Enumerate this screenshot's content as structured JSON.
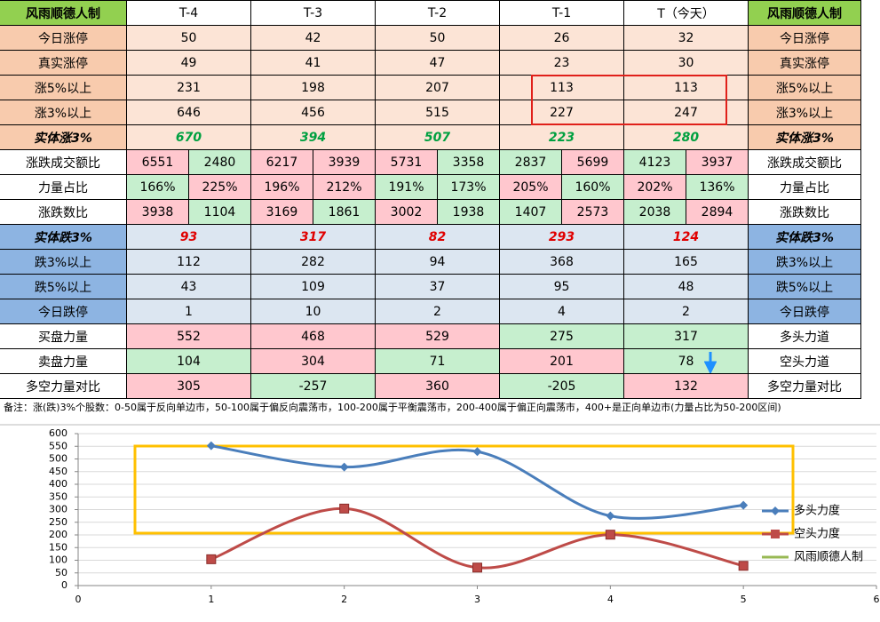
{
  "table": {
    "header": [
      "风雨顺德人制",
      "T-4",
      "T-3",
      "T-2",
      "T-1",
      "T（今天）",
      "风雨顺德人制"
    ],
    "rows": [
      {
        "label": "今日涨停",
        "cells": [
          50,
          42,
          50,
          26,
          32
        ],
        "right": "今日涨停"
      },
      {
        "label": "真实涨停",
        "cells": [
          49,
          41,
          47,
          23,
          30
        ],
        "right": "真实涨停"
      },
      {
        "label": "涨5%以上",
        "cells": [
          231,
          198,
          207,
          113,
          113
        ],
        "right": "涨5%以上"
      },
      {
        "label": "涨3%以上",
        "cells": [
          646,
          456,
          515,
          227,
          247
        ],
        "right": "涨3%以上"
      },
      {
        "label": "实体涨3%",
        "cells": [
          670,
          394,
          507,
          223,
          280
        ],
        "right": "实体涨3%"
      },
      {
        "label": "涨跌成交额比",
        "cells": [
          6551,
          2480,
          6217,
          3939,
          5731,
          3358,
          2837,
          5699,
          4123,
          3937
        ],
        "fills": [
          "#ffc7ce",
          "#c6efce",
          "#ffc7ce",
          "#ffc7ce",
          "#ffc7ce",
          "#c6efce",
          "#c6efce",
          "#ffc7ce",
          "#c6efce",
          "#ffc7ce"
        ],
        "right": "涨跌成交额比"
      },
      {
        "label": "力量占比",
        "cells": [
          "166%",
          "225%",
          "196%",
          "212%",
          "191%",
          "173%",
          "205%",
          "160%",
          "202%",
          "136%"
        ],
        "fills": [
          "#c6efce",
          "#ffc7ce",
          "#ffc7ce",
          "#ffc7ce",
          "#c6efce",
          "#c6efce",
          "#ffc7ce",
          "#c6efce",
          "#ffc7ce",
          "#c6efce"
        ],
        "right": "力量占比"
      },
      {
        "label": "涨跌数比",
        "cells": [
          3938,
          1104,
          3169,
          1861,
          3002,
          1938,
          1407,
          2573,
          2038,
          2894
        ],
        "fills": [
          "#ffc7ce",
          "#c6efce",
          "#ffc7ce",
          "#c6efce",
          "#ffc7ce",
          "#c6efce",
          "#c6efce",
          "#ffc7ce",
          "#c6efce",
          "#ffc7ce"
        ],
        "right": "涨跌数比"
      },
      {
        "label": "实体跌3%",
        "cells": [
          93,
          317,
          82,
          293,
          124
        ],
        "right": "实体跌3%"
      },
      {
        "label": "跌3%以上",
        "cells": [
          112,
          282,
          94,
          368,
          165
        ],
        "right": "跌3%以上"
      },
      {
        "label": "跌5%以上",
        "cells": [
          43,
          109,
          37,
          95,
          48
        ],
        "right": "跌5%以上"
      },
      {
        "label": "今日跌停",
        "cells": [
          1,
          10,
          2,
          4,
          2
        ],
        "right": "今日跌停"
      },
      {
        "label": "买盘力量",
        "cells": [
          552,
          468,
          529,
          275,
          317
        ],
        "fills": [
          "#ffc7ce",
          "#ffc7ce",
          "#ffc7ce",
          "#c6efce",
          "#c6efce"
        ],
        "right": "多头力道"
      },
      {
        "label": "卖盘力量",
        "cells": [
          104,
          304,
          71,
          201,
          78
        ],
        "fills": [
          "#c6efce",
          "#ffc7ce",
          "#c6efce",
          "#ffc7ce",
          "#c6efce"
        ],
        "right": "空头力道"
      },
      {
        "label": "多空力量对比",
        "cells": [
          305,
          -257,
          360,
          -205,
          132
        ],
        "fills": [
          "#ffc7ce",
          "#c6efce",
          "#ffc7ce",
          "#c6efce",
          "#ffc7ce"
        ],
        "right": "多空力量对比"
      }
    ],
    "note": "备注：涨(跌)3%个股数：0-50属于反向单边市，50-100属于偏反向震荡市，100-200属于平衡震荡市，200-400属于偏正向震荡市，400+是正向单边市(力量占比为50-200区间)"
  },
  "chart_data": {
    "type": "line",
    "smooth": true,
    "grid": true,
    "x": [
      1,
      2,
      3,
      4,
      5
    ],
    "series": [
      {
        "name": "多头力度",
        "color": "#4a7ebb",
        "marker": "diamond",
        "values": [
          552,
          468,
          529,
          275,
          317
        ]
      },
      {
        "name": "空头力度",
        "color": "#be4b48",
        "marker": "square",
        "values": [
          104,
          304,
          71,
          201,
          78
        ]
      },
      {
        "name": "风雨顺德人制",
        "color": "#98b954",
        "values": [
          null,
          null,
          null,
          null,
          null
        ]
      }
    ],
    "xlim": [
      0,
      6
    ],
    "xticks": [
      0,
      1,
      2,
      3,
      4,
      5,
      6
    ],
    "ylim": [
      0,
      600
    ],
    "yticks": [
      0,
      50,
      100,
      150,
      200,
      250,
      300,
      350,
      400,
      450,
      500,
      550,
      600
    ],
    "legend": "right"
  }
}
